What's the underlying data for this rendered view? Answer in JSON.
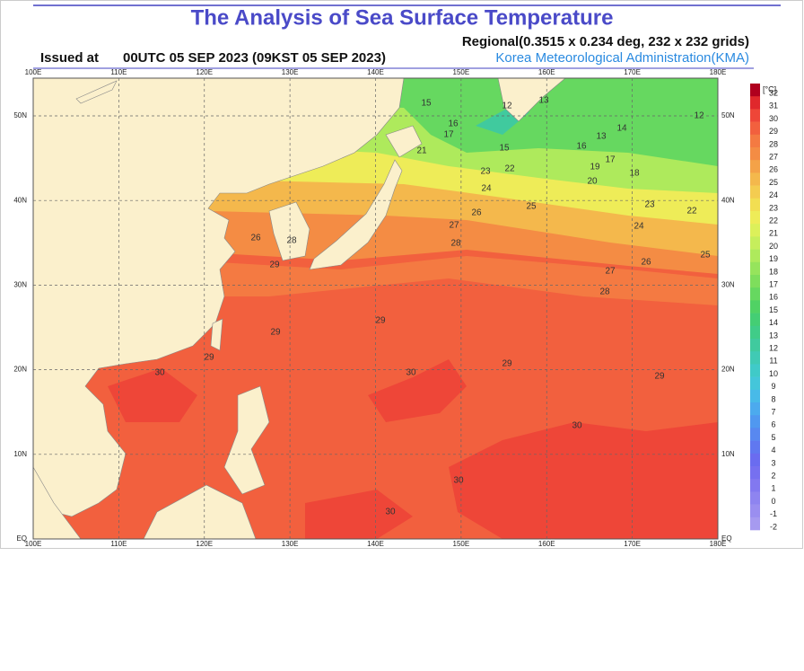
{
  "header": {
    "title": "The Analysis of Sea Surface Temperature",
    "issued_label": "Issued at",
    "issued_time": "00UTC 05 SEP 2023 (09KST 05 SEP 2023)",
    "regional": "Regional(0.3515 x 0.234 deg, 232 x 232 grids)",
    "agency": "Korea Meteorological Administration(KMA)"
  },
  "map": {
    "lon_labels": [
      "100E",
      "110E",
      "120E",
      "130E",
      "140E",
      "150E",
      "160E",
      "170E",
      "180E"
    ],
    "lat_labels": [
      "EQ",
      "10N",
      "20N",
      "30N",
      "40N",
      "50N"
    ],
    "contour_labels": [
      "15",
      "16",
      "17",
      "12",
      "13",
      "14",
      "13",
      "12",
      "15",
      "16",
      "17",
      "18",
      "19",
      "20",
      "21",
      "22",
      "23",
      "24",
      "25",
      "26",
      "27",
      "28",
      "29",
      "29",
      "29",
      "30",
      "30",
      "29",
      "30",
      "30",
      "30",
      "26",
      "28",
      "29",
      "24",
      "23",
      "22",
      "25",
      "26",
      "27",
      "28",
      "29"
    ]
  },
  "colorbar": {
    "unit": "[°C]",
    "levels": [
      32,
      31,
      30,
      29,
      28,
      27,
      26,
      25,
      24,
      23,
      22,
      21,
      20,
      19,
      18,
      17,
      16,
      15,
      14,
      13,
      12,
      11,
      10,
      9,
      8,
      7,
      6,
      5,
      4,
      3,
      2,
      1,
      0,
      -1,
      -2
    ],
    "colors": [
      "#b0001e",
      "#e0282c",
      "#ee4638",
      "#f2603e",
      "#f47a42",
      "#f48c44",
      "#f4a248",
      "#f4b84c",
      "#f4cc50",
      "#f2de52",
      "#eeec58",
      "#dcf05a",
      "#c6ee5c",
      "#aeea5c",
      "#96e45c",
      "#7ede5c",
      "#66d860",
      "#50d264",
      "#44ce74",
      "#40cc88",
      "#40ca9e",
      "#40cab4",
      "#40cac8",
      "#44c6da",
      "#48bae8",
      "#4caaee",
      "#5098f0",
      "#5888f0",
      "#6078f0",
      "#6a6cf0",
      "#7670f0",
      "#8278f0",
      "#8e84f0",
      "#9a8ef0",
      "#a69af0"
    ]
  }
}
